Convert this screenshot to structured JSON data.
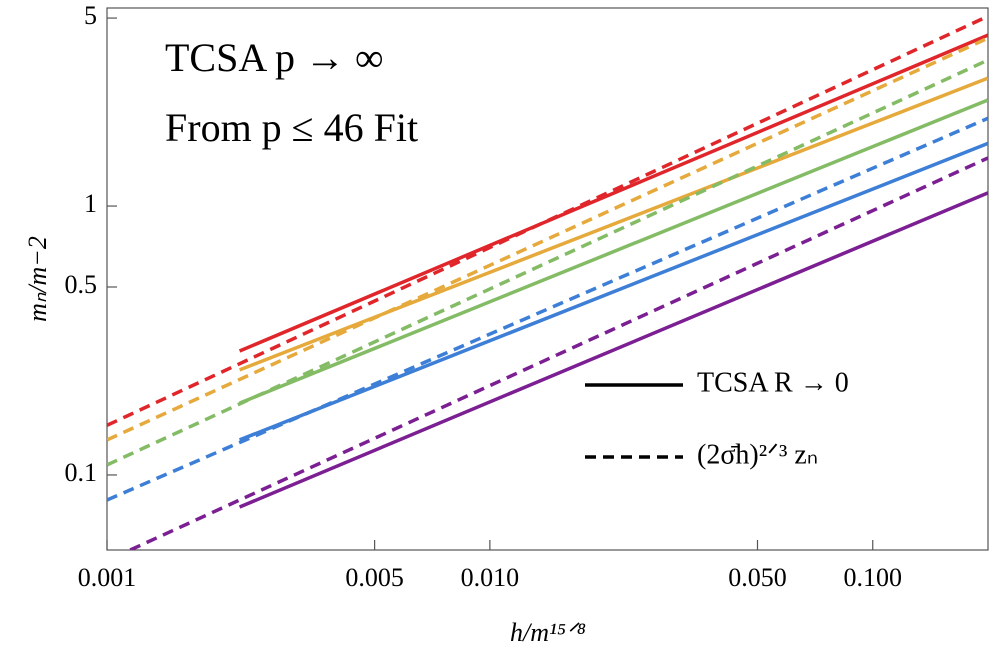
{
  "chart_data": {
    "type": "line",
    "annotations": [
      "TCSA p → ∞",
      "From p ≤ 46 Fit"
    ],
    "x_label": "h/m¹⁵ᐟ⁸",
    "y_label": "mₙ/m−2",
    "log_x": true,
    "log_y": true,
    "xlim": [
      0.001,
      0.2
    ],
    "ylim": [
      0.0526,
      5.45
    ],
    "xticks": [
      0.001,
      {
        "value": 0.005,
        "label": "0.005"
      },
      {
        "value": 0.01,
        "label": "0.010"
      },
      {
        "value": 0.05,
        "label": "0.050"
      },
      {
        "value": 0.1,
        "label": "0.100"
      }
    ],
    "yticks": [
      0.1,
      0.5,
      1,
      5
    ],
    "legend": [
      {
        "label": "TCSA R → 0",
        "style": "solid"
      },
      {
        "label": "(2σ̄h)²ᐟ³ zₙ",
        "style": "dashed"
      }
    ],
    "series": [
      {
        "color": "#e0262a",
        "style": "solid",
        "x": [
          0.00222,
          0.2
        ],
        "values": [
          0.289,
          4.32
        ]
      },
      {
        "color": "#e0262a",
        "style": "dashed",
        "x": [
          0.001,
          0.2
        ],
        "values": [
          0.153,
          5.08
        ]
      },
      {
        "color": "#e6a93b",
        "style": "solid",
        "x": [
          0.00222,
          0.2
        ],
        "values": [
          0.246,
          2.99
        ]
      },
      {
        "color": "#e6a93b",
        "style": "dashed",
        "x": [
          0.001,
          0.2
        ],
        "values": [
          0.135,
          4.21
        ]
      },
      {
        "color": "#84bb65",
        "style": "solid",
        "x": [
          0.00222,
          0.2
        ],
        "values": [
          0.185,
          2.48
        ]
      },
      {
        "color": "#84bb65",
        "style": "dashed",
        "x": [
          0.001,
          0.2
        ],
        "values": [
          0.109,
          3.49
        ]
      },
      {
        "color": "#3d7fd6",
        "style": "solid",
        "x": [
          0.00222,
          0.2
        ],
        "values": [
          0.135,
          1.71
        ]
      },
      {
        "color": "#3d7fd6",
        "style": "dashed",
        "x": [
          0.001,
          0.2
        ],
        "values": [
          0.0807,
          2.12
        ]
      },
      {
        "color": "#7b1f93",
        "style": "solid",
        "x": [
          0.00222,
          0.2
        ],
        "values": [
          0.076,
          1.12
        ]
      },
      {
        "color": "#7b1f93",
        "style": "dashed",
        "x": [
          0.00115,
          0.2
        ],
        "values": [
          0.0526,
          1.51
        ]
      }
    ]
  }
}
